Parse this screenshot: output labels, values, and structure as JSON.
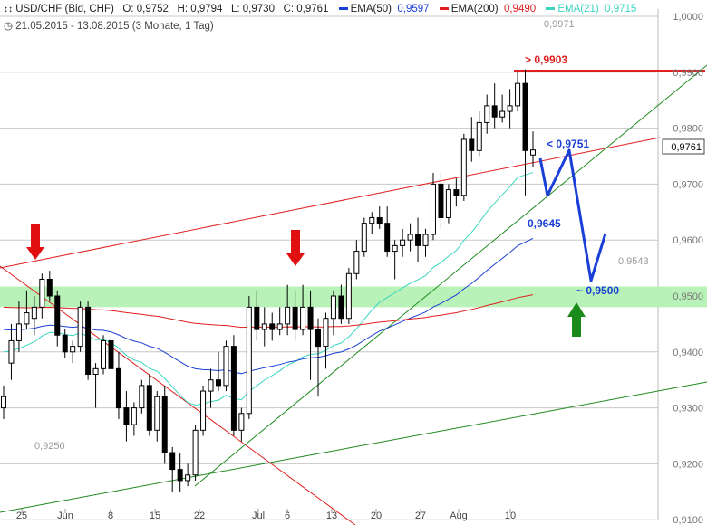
{
  "header": {
    "icon": "candlestick-icon",
    "symbol": "USD/CHF (Bid, CHF)",
    "open": "O: 0,9752",
    "high": "H: 0,9794",
    "low": "L: 0,9730",
    "close": "C: 0,9761",
    "range_icon": "clock-icon",
    "range": "21.05.2015 - 13.08.2015 (3 Monate, 1 Tag)",
    "legend": [
      {
        "label": "EMA(50)",
        "value": "0,9597",
        "color": "#1a3fd6"
      },
      {
        "label": "EMA(200)",
        "value": "0,9490",
        "color": "#e02020"
      },
      {
        "label": "EMA(21)",
        "value": "0,9715",
        "color": "#3ad6c0"
      }
    ]
  },
  "colors": {
    "grid": "#c8c8c8",
    "zone": "#b8f2b8",
    "trend_red": "#e02020",
    "trend_green": "#1f8a1f",
    "candle": "#000000",
    "projection": "#1a3fd6",
    "arrow_down": "#e01010",
    "arrow_up": "#1a8a1a"
  },
  "chart_data": {
    "type": "candlestick",
    "y_ticks": [
      "1,0000",
      "0,9900",
      "0,9800",
      "0,9700",
      "0,9600",
      "0,9500",
      "0,9400",
      "0,9300",
      "0,9200",
      "0,9100"
    ],
    "y_tick_values": [
      1.0,
      0.99,
      0.98,
      0.97,
      0.96,
      0.95,
      0.94,
      0.93,
      0.92,
      0.91
    ],
    "x_ticks": [
      "25",
      "Jun",
      "8",
      "15",
      "22",
      "Jul",
      "6",
      "13",
      "20",
      "27",
      "Aug",
      "10"
    ],
    "ylim": [
      0.91,
      1.003
    ],
    "current_price_label": "0,9761",
    "annotations": {
      "high_label": "0,9971",
      "low_label": "0,9250",
      "mid_label": "0,9543",
      "resistance": "> 0,9903",
      "projection_top": "< 0,9751",
      "projection_mid": "0,9645",
      "projection_target": "~ 0,9500"
    },
    "resistance_level": 0.9903,
    "support_zone": [
      0.948,
      0.9517
    ],
    "candles": [
      {
        "o": 0.93,
        "h": 0.934,
        "l": 0.928,
        "c": 0.932
      },
      {
        "o": 0.938,
        "h": 0.945,
        "l": 0.935,
        "c": 0.942
      },
      {
        "o": 0.942,
        "h": 0.949,
        "l": 0.94,
        "c": 0.945
      },
      {
        "o": 0.945,
        "h": 0.951,
        "l": 0.944,
        "c": 0.947
      },
      {
        "o": 0.946,
        "h": 0.95,
        "l": 0.943,
        "c": 0.948
      },
      {
        "o": 0.948,
        "h": 0.954,
        "l": 0.946,
        "c": 0.953
      },
      {
        "o": 0.953,
        "h": 0.9545,
        "l": 0.949,
        "c": 0.95
      },
      {
        "o": 0.95,
        "h": 0.951,
        "l": 0.941,
        "c": 0.943
      },
      {
        "o": 0.943,
        "h": 0.944,
        "l": 0.939,
        "c": 0.94
      },
      {
        "o": 0.94,
        "h": 0.942,
        "l": 0.938,
        "c": 0.941
      },
      {
        "o": 0.941,
        "h": 0.949,
        "l": 0.94,
        "c": 0.948
      },
      {
        "o": 0.948,
        "h": 0.949,
        "l": 0.935,
        "c": 0.936
      },
      {
        "o": 0.936,
        "h": 0.938,
        "l": 0.93,
        "c": 0.937
      },
      {
        "o": 0.937,
        "h": 0.943,
        "l": 0.936,
        "c": 0.942
      },
      {
        "o": 0.942,
        "h": 0.944,
        "l": 0.936,
        "c": 0.937
      },
      {
        "o": 0.937,
        "h": 0.94,
        "l": 0.928,
        "c": 0.93
      },
      {
        "o": 0.93,
        "h": 0.933,
        "l": 0.924,
        "c": 0.927
      },
      {
        "o": 0.927,
        "h": 0.931,
        "l": 0.925,
        "c": 0.93
      },
      {
        "o": 0.93,
        "h": 0.935,
        "l": 0.929,
        "c": 0.934
      },
      {
        "o": 0.934,
        "h": 0.936,
        "l": 0.925,
        "c": 0.926
      },
      {
        "o": 0.926,
        "h": 0.933,
        "l": 0.924,
        "c": 0.932
      },
      {
        "o": 0.932,
        "h": 0.934,
        "l": 0.92,
        "c": 0.922
      },
      {
        "o": 0.922,
        "h": 0.923,
        "l": 0.915,
        "c": 0.919
      },
      {
        "o": 0.919,
        "h": 0.922,
        "l": 0.915,
        "c": 0.917
      },
      {
        "o": 0.917,
        "h": 0.92,
        "l": 0.916,
        "c": 0.918
      },
      {
        "o": 0.918,
        "h": 0.927,
        "l": 0.917,
        "c": 0.926
      },
      {
        "o": 0.926,
        "h": 0.934,
        "l": 0.925,
        "c": 0.933
      },
      {
        "o": 0.933,
        "h": 0.937,
        "l": 0.93,
        "c": 0.935
      },
      {
        "o": 0.935,
        "h": 0.94,
        "l": 0.933,
        "c": 0.934
      },
      {
        "o": 0.934,
        "h": 0.942,
        "l": 0.933,
        "c": 0.941
      },
      {
        "o": 0.941,
        "h": 0.943,
        "l": 0.925,
        "c": 0.926
      },
      {
        "o": 0.926,
        "h": 0.93,
        "l": 0.924,
        "c": 0.929
      },
      {
        "o": 0.929,
        "h": 0.95,
        "l": 0.928,
        "c": 0.948
      },
      {
        "o": 0.948,
        "h": 0.951,
        "l": 0.942,
        "c": 0.944
      },
      {
        "o": 0.944,
        "h": 0.948,
        "l": 0.941,
        "c": 0.945
      },
      {
        "o": 0.945,
        "h": 0.947,
        "l": 0.942,
        "c": 0.944
      },
      {
        "o": 0.944,
        "h": 0.948,
        "l": 0.943,
        "c": 0.945
      },
      {
        "o": 0.945,
        "h": 0.952,
        "l": 0.943,
        "c": 0.948
      },
      {
        "o": 0.948,
        "h": 0.951,
        "l": 0.942,
        "c": 0.944
      },
      {
        "o": 0.944,
        "h": 0.952,
        "l": 0.943,
        "c": 0.948
      },
      {
        "o": 0.948,
        "h": 0.951,
        "l": 0.935,
        "c": 0.944
      },
      {
        "o": 0.944,
        "h": 0.946,
        "l": 0.932,
        "c": 0.941
      },
      {
        "o": 0.941,
        "h": 0.947,
        "l": 0.937,
        "c": 0.946
      },
      {
        "o": 0.946,
        "h": 0.951,
        "l": 0.943,
        "c": 0.95
      },
      {
        "o": 0.95,
        "h": 0.952,
        "l": 0.945,
        "c": 0.946
      },
      {
        "o": 0.946,
        "h": 0.955,
        "l": 0.945,
        "c": 0.954
      },
      {
        "o": 0.954,
        "h": 0.96,
        "l": 0.953,
        "c": 0.958
      },
      {
        "o": 0.958,
        "h": 0.964,
        "l": 0.957,
        "c": 0.963
      },
      {
        "o": 0.963,
        "h": 0.965,
        "l": 0.961,
        "c": 0.964
      },
      {
        "o": 0.964,
        "h": 0.966,
        "l": 0.962,
        "c": 0.963
      },
      {
        "o": 0.963,
        "h": 0.966,
        "l": 0.957,
        "c": 0.958
      },
      {
        "o": 0.958,
        "h": 0.96,
        "l": 0.953,
        "c": 0.959
      },
      {
        "o": 0.959,
        "h": 0.962,
        "l": 0.957,
        "c": 0.96
      },
      {
        "o": 0.96,
        "h": 0.963,
        "l": 0.958,
        "c": 0.961
      },
      {
        "o": 0.961,
        "h": 0.964,
        "l": 0.956,
        "c": 0.959
      },
      {
        "o": 0.959,
        "h": 0.962,
        "l": 0.957,
        "c": 0.961
      },
      {
        "o": 0.961,
        "h": 0.972,
        "l": 0.96,
        "c": 0.97
      },
      {
        "o": 0.97,
        "h": 0.972,
        "l": 0.962,
        "c": 0.964
      },
      {
        "o": 0.964,
        "h": 0.97,
        "l": 0.963,
        "c": 0.969
      },
      {
        "o": 0.969,
        "h": 0.971,
        "l": 0.966,
        "c": 0.968
      },
      {
        "o": 0.968,
        "h": 0.979,
        "l": 0.967,
        "c": 0.978
      },
      {
        "o": 0.978,
        "h": 0.982,
        "l": 0.974,
        "c": 0.976
      },
      {
        "o": 0.976,
        "h": 0.983,
        "l": 0.975,
        "c": 0.981
      },
      {
        "o": 0.981,
        "h": 0.986,
        "l": 0.979,
        "c": 0.984
      },
      {
        "o": 0.984,
        "h": 0.988,
        "l": 0.98,
        "c": 0.982
      },
      {
        "o": 0.982,
        "h": 0.986,
        "l": 0.981,
        "c": 0.983
      },
      {
        "o": 0.983,
        "h": 0.987,
        "l": 0.98,
        "c": 0.984
      },
      {
        "o": 0.984,
        "h": 0.99,
        "l": 0.983,
        "c": 0.988
      },
      {
        "o": 0.988,
        "h": 0.9905,
        "l": 0.968,
        "c": 0.976
      },
      {
        "o": 0.9752,
        "h": 0.9794,
        "l": 0.973,
        "c": 0.9761
      }
    ]
  }
}
